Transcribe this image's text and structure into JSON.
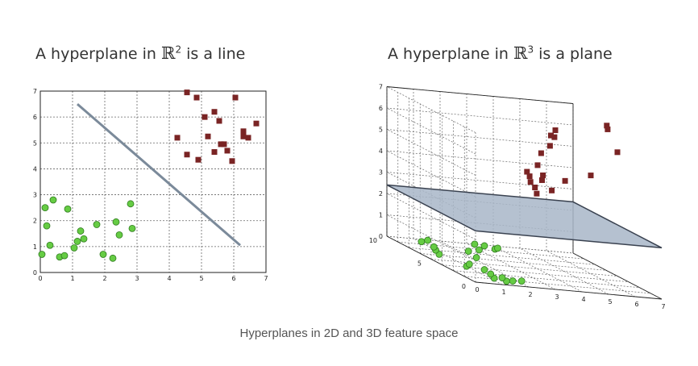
{
  "caption": "Hyperplanes in 2D and 3D feature space",
  "colors": {
    "green": "#66cc44",
    "maroon": "#7a2424",
    "line": "#7b8a9a",
    "plane": "#a8b6c8",
    "grid": "#666666"
  },
  "chart_data": [
    {
      "type": "scatter",
      "title": {
        "prefix": "A hyperplane in ",
        "symbol": "ℝ",
        "power": "2",
        "suffix": " is a line"
      },
      "xlabel": "",
      "ylabel": "",
      "xlim": [
        0,
        7
      ],
      "ylim": [
        0,
        7
      ],
      "xticks": [
        "0",
        "1",
        "2",
        "3",
        "4",
        "5",
        "6",
        "7"
      ],
      "yticks": [
        "0",
        "1",
        "2",
        "3",
        "4",
        "5",
        "6",
        "7"
      ],
      "grid": true,
      "series": [
        {
          "color": "#66cc44",
          "marker": "circle",
          "points": [
            [
              0.05,
              0.7
            ],
            [
              0.15,
              2.5
            ],
            [
              0.2,
              1.8
            ],
            [
              0.3,
              1.05
            ],
            [
              0.4,
              2.8
            ],
            [
              0.6,
              0.6
            ],
            [
              0.75,
              0.65
            ],
            [
              0.85,
              2.45
            ],
            [
              1.05,
              0.95
            ],
            [
              1.15,
              1.2
            ],
            [
              1.25,
              1.6
            ],
            [
              1.35,
              1.3
            ],
            [
              1.75,
              1.85
            ],
            [
              1.95,
              0.7
            ],
            [
              2.25,
              0.55
            ],
            [
              2.35,
              1.95
            ],
            [
              2.45,
              1.45
            ],
            [
              2.8,
              2.65
            ],
            [
              2.85,
              1.7
            ]
          ]
        },
        {
          "color": "#7a2424",
          "marker": "square",
          "points": [
            [
              4.25,
              5.2
            ],
            [
              4.55,
              6.95
            ],
            [
              4.55,
              4.55
            ],
            [
              4.85,
              6.75
            ],
            [
              4.9,
              4.35
            ],
            [
              5.1,
              6.0
            ],
            [
              5.2,
              5.25
            ],
            [
              5.4,
              6.2
            ],
            [
              5.4,
              4.65
            ],
            [
              5.55,
              5.85
            ],
            [
              5.6,
              4.95
            ],
            [
              5.7,
              4.95
            ],
            [
              5.8,
              4.7
            ],
            [
              5.95,
              4.3
            ],
            [
              6.05,
              6.75
            ],
            [
              6.3,
              5.45
            ],
            [
              6.3,
              5.25
            ],
            [
              6.45,
              5.2
            ],
            [
              6.7,
              5.75
            ]
          ]
        }
      ],
      "line": {
        "from": [
          1.15,
          6.5
        ],
        "to": [
          6.2,
          1.05
        ]
      }
    },
    {
      "type": "scatter",
      "title": {
        "prefix": "A hyperplane in ",
        "symbol": "ℝ",
        "power": "3",
        "suffix": " is a plane"
      },
      "xlim": [
        0,
        7
      ],
      "ylim": [
        0,
        10
      ],
      "zlim": [
        0,
        7
      ],
      "xticks": [
        "0",
        "1",
        "2",
        "3",
        "4",
        "5",
        "6",
        "7"
      ],
      "yticks": [
        "0",
        "5",
        "10"
      ],
      "zticks": [
        "0",
        "1",
        "2",
        "3",
        "4",
        "5",
        "6",
        "7"
      ],
      "grid": true,
      "series": [
        {
          "color": "#66cc44",
          "marker": "circle",
          "points": [
            [
              1.5,
              1.0,
              0.0
            ],
            [
              1.2,
              1.5,
              0.0
            ],
            [
              1.8,
              1.2,
              0.0
            ],
            [
              1.6,
              1.8,
              0.0
            ],
            [
              2.2,
              1.4,
              0.0
            ],
            [
              1.4,
              2.5,
              0.0
            ],
            [
              1.0,
              4.0,
              0.0
            ],
            [
              1.3,
              4.6,
              0.0
            ],
            [
              1.5,
              3.5,
              0.0
            ],
            [
              0.8,
              6.5,
              0.0
            ],
            [
              1.0,
              7.5,
              0.0
            ],
            [
              1.2,
              8.3,
              0.0
            ],
            [
              1.1,
              9.4,
              0.0
            ],
            [
              1.5,
              9.9,
              0.0
            ],
            [
              2.2,
              6.5,
              0.0
            ],
            [
              2.4,
              8.0,
              0.0
            ],
            [
              3.0,
              8.6,
              0.0
            ],
            [
              3.3,
              10.0,
              0.0
            ],
            [
              3.6,
              9.8,
              0.0
            ],
            [
              3.8,
              9.2,
              0.0
            ],
            [
              4.0,
              9.5,
              0.0
            ]
          ]
        },
        {
          "color": "#7a2424",
          "marker": "square",
          "points": [
            [
              3.6,
              5.0,
              4.5
            ],
            [
              3.7,
              5.0,
              4.3
            ],
            [
              3.8,
              5.2,
              4.0
            ],
            [
              3.9,
              5.0,
              3.8
            ],
            [
              4.0,
              5.1,
              3.5
            ],
            [
              4.1,
              5.3,
              4.8
            ],
            [
              4.2,
              5.0,
              4.4
            ],
            [
              4.0,
              4.6,
              5.5
            ],
            [
              4.3,
              4.5,
              5.9
            ],
            [
              4.5,
              5.0,
              6.3
            ],
            [
              4.6,
              4.8,
              6.6
            ],
            [
              4.7,
              5.2,
              6.2
            ],
            [
              4.4,
              4.6,
              3.8
            ],
            [
              6.0,
              5.0,
              4.6
            ],
            [
              6.6,
              5.0,
              7.0
            ],
            [
              6.5,
              4.6,
              6.9
            ],
            [
              7.0,
              5.0,
              5.8
            ],
            [
              5.1,
              5.2,
              4.2
            ],
            [
              4.3,
              5.4,
              4.1
            ]
          ]
        }
      ],
      "plane": {
        "z": 2.4
      }
    }
  ]
}
